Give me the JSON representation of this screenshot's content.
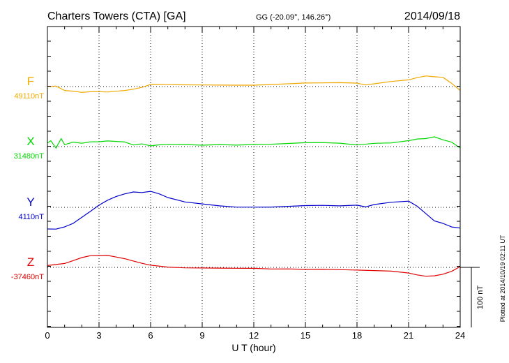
{
  "chart_data": {
    "type": "line",
    "title": "Charters Towers (CTA)  [GA]",
    "subtitle": "GG (-20.09°, 146.26°)",
    "date": "2014/09/18",
    "xlabel": "U T (hour)",
    "xlim": [
      0,
      24
    ],
    "xticks": [
      "0",
      "3",
      "6",
      "9",
      "12",
      "15",
      "18",
      "21",
      "24"
    ],
    "grid": true,
    "scale_bar_label": "100 nT",
    "plotted_note": "Plotted at 2014/10/19 02:11  UT",
    "series": [
      {
        "name": "F",
        "baseline_label": "49110nT",
        "color": "#f0a800",
        "unit": "nT",
        "x": [
          0,
          0.5,
          1,
          1.5,
          2,
          2.5,
          3,
          3.5,
          4,
          4.5,
          5,
          5.5,
          6,
          6.5,
          7,
          8,
          9,
          10,
          11,
          12,
          13,
          14,
          15,
          16,
          17,
          18,
          18.5,
          19,
          20,
          21,
          21.5,
          22,
          22.5,
          23,
          23.5,
          24
        ],
        "values": [
          0,
          1,
          -6,
          -7,
          -9,
          -8,
          -8,
          -9,
          -8,
          -7,
          -5,
          -2,
          3,
          3,
          3,
          3,
          3,
          3,
          3,
          3,
          4,
          5,
          6,
          6,
          6,
          5,
          2,
          4,
          8,
          11,
          15,
          18,
          17,
          16,
          6,
          -6
        ]
      },
      {
        "name": "X",
        "baseline_label": "31480nT",
        "color": "#00d800",
        "unit": "nT",
        "x": [
          0,
          0.2,
          0.5,
          0.8,
          1,
          1.5,
          2,
          2.5,
          3,
          3.5,
          4,
          4.5,
          5,
          5.5,
          6,
          6.5,
          7,
          8,
          9,
          10,
          11,
          12,
          13,
          14,
          15,
          16,
          17,
          18,
          19,
          20,
          21,
          21.5,
          22,
          22.5,
          23,
          23.5,
          24
        ],
        "values": [
          6,
          10,
          -2,
          14,
          4,
          8,
          6,
          8,
          8,
          9,
          8,
          7,
          2,
          4,
          1,
          3,
          4,
          4,
          3,
          4,
          3,
          4,
          4,
          5,
          6,
          6,
          5,
          2,
          5,
          6,
          10,
          13,
          14,
          17,
          12,
          8,
          -2
        ]
      },
      {
        "name": "Y",
        "baseline_label": "4110nT",
        "color": "#0000cc",
        "unit": "nT",
        "x": [
          0,
          0.5,
          1,
          1.5,
          2,
          2.5,
          3,
          3.5,
          4,
          4.5,
          5,
          5.5,
          6,
          6.5,
          7,
          8,
          9,
          10,
          11,
          12,
          13,
          14,
          15,
          16,
          17,
          18,
          18.5,
          19,
          20,
          21,
          21.5,
          22,
          22.5,
          23,
          23.5,
          24
        ],
        "values": [
          -36,
          -36,
          -32,
          -26,
          -16,
          -6,
          4,
          12,
          18,
          22,
          25,
          24,
          26,
          22,
          16,
          9,
          6,
          3,
          1,
          1,
          1,
          2,
          3,
          3,
          2,
          3,
          0,
          4,
          8,
          10,
          2,
          -10,
          -22,
          -26,
          -32,
          -34
        ]
      },
      {
        "name": "Z",
        "baseline_label": "-37460nT",
        "color": "#e00000",
        "unit": "nT",
        "x": [
          0,
          0.5,
          1,
          1.5,
          2,
          2.5,
          3,
          3.5,
          4,
          4.5,
          5,
          5.5,
          6,
          7,
          8,
          9,
          10,
          11,
          12,
          13,
          14,
          15,
          16,
          17,
          18,
          19,
          20,
          21,
          21.5,
          22,
          22.5,
          23,
          23.5,
          24
        ],
        "values": [
          3,
          5,
          7,
          12,
          17,
          20,
          20,
          20,
          17,
          14,
          10,
          6,
          3,
          0,
          -1,
          -1,
          -1,
          -1,
          -1,
          -2,
          -2,
          -3,
          -3,
          -4,
          -5,
          -6,
          -7,
          -10,
          -13,
          -15,
          -14,
          -11,
          -6,
          2
        ]
      }
    ]
  }
}
